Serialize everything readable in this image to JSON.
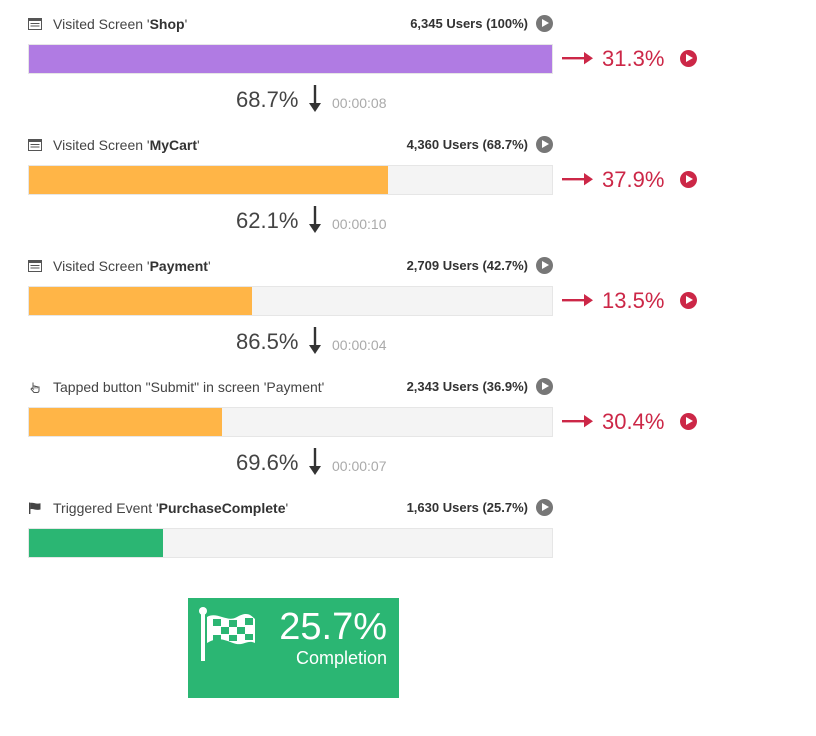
{
  "chart_data": {
    "type": "bar",
    "title": "",
    "xlabel": "",
    "ylabel": "",
    "orientation": "horizontal",
    "steps": [
      {
        "label_prefix": "Visited Screen '",
        "label_bold": "Shop",
        "label_suffix": "'",
        "icon": "screen-icon",
        "users_text": "6,345 Users (100%)",
        "users": 6345,
        "share": 100,
        "bar_color": "#b07be3"
      },
      {
        "label_prefix": "Visited Screen '",
        "label_bold": "MyCart",
        "label_suffix": "'",
        "icon": "screen-icon",
        "users_text": "4,360 Users (68.7%)",
        "users": 4360,
        "share": 68.7,
        "bar_color": "#ffb547"
      },
      {
        "label_prefix": "Visited Screen '",
        "label_bold": "Payment",
        "label_suffix": "'",
        "icon": "screen-icon",
        "users_text": "2,709 Users (42.7%)",
        "users": 2709,
        "share": 42.7,
        "bar_color": "#ffb547"
      },
      {
        "label_prefix": "Tapped button \"Submit\" in screen 'Payment'",
        "label_bold": "",
        "label_suffix": "",
        "icon": "tap-hand-icon",
        "users_text": "2,343 Users (36.9%)",
        "users": 2343,
        "share": 36.9,
        "bar_color": "#ffb547"
      },
      {
        "label_prefix": "Triggered Event '",
        "label_bold": "PurchaseComplete",
        "label_suffix": "'",
        "icon": "flag-icon",
        "users_text": "1,630 Users (25.7%)",
        "users": 1630,
        "share": 25.7,
        "bar_color": "#2bb673"
      }
    ],
    "conversions": [
      {
        "pct": "68.7%",
        "time": "00:00:08"
      },
      {
        "pct": "62.1%",
        "time": "00:00:10"
      },
      {
        "pct": "86.5%",
        "time": "00:00:04"
      },
      {
        "pct": "69.6%",
        "time": "00:00:07"
      }
    ],
    "dropoffs": [
      {
        "pct": "31.3%"
      },
      {
        "pct": "37.9%"
      },
      {
        "pct": "13.5%"
      },
      {
        "pct": "30.4%"
      }
    ],
    "completion": {
      "value": "25.7%",
      "label": "Completion"
    }
  },
  "colors": {
    "dropoff": "#cc2747",
    "completion": "#2bb673",
    "play_button": "#777777",
    "track": "#f4f4f4"
  }
}
